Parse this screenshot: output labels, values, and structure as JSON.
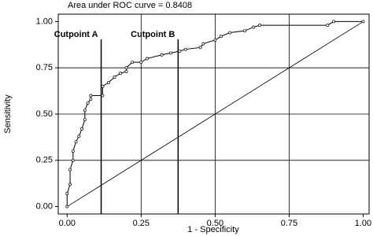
{
  "chart_data": {
    "type": "line",
    "title": "Area under ROC curve = 0.8408",
    "x_label": "1 - Specificity",
    "y_label": "Sensitivity",
    "xlim": [
      -0.03,
      1.02
    ],
    "ylim": [
      -0.04,
      1.04
    ],
    "xticks": [
      {
        "value": 0,
        "label": "0.00"
      },
      {
        "value": 0.25,
        "label": "0.25"
      },
      {
        "value": 0.5,
        "label": "0.50"
      },
      {
        "value": 0.75,
        "label": "0.75"
      },
      {
        "value": 1,
        "label": "1.00"
      }
    ],
    "yticks": [
      {
        "value": 0,
        "label": "0.00"
      },
      {
        "value": 0.25,
        "label": "0.25"
      },
      {
        "value": 0.5,
        "label": "0.50"
      },
      {
        "value": 0.75,
        "label": "0.75"
      },
      {
        "value": 1,
        "label": "1.00"
      }
    ],
    "grid": true,
    "series": [
      {
        "color": "#000000",
        "x": [
          0,
          0,
          0.01,
          0.01,
          0.02,
          0.02,
          0.03,
          0.04,
          0.05,
          0.06,
          0.06,
          0.07,
          0.08,
          0.08,
          0.12,
          0.12,
          0.14,
          0.16,
          0.18,
          0.2,
          0.2,
          0.22,
          0.25,
          0.27,
          0.32,
          0.35,
          0.38,
          0.4,
          0.45,
          0.46,
          0.5,
          0.52,
          0.55,
          0.6,
          0.63,
          0.65,
          0.88,
          0.9,
          1.0
        ],
        "values": [
          0,
          0.07,
          0.12,
          0.2,
          0.25,
          0.3,
          0.35,
          0.38,
          0.42,
          0.47,
          0.52,
          0.56,
          0.58,
          0.6,
          0.6,
          0.65,
          0.67,
          0.7,
          0.72,
          0.73,
          0.75,
          0.78,
          0.78,
          0.8,
          0.82,
          0.83,
          0.84,
          0.85,
          0.86,
          0.88,
          0.9,
          0.92,
          0.94,
          0.95,
          0.97,
          0.98,
          0.98,
          1.0,
          1.0
        ]
      }
    ],
    "cutpoints": [
      {
        "label": "Cutpoint A",
        "x": 0.115
      },
      {
        "label": "Cutpoint B",
        "x": 0.375
      }
    ]
  }
}
